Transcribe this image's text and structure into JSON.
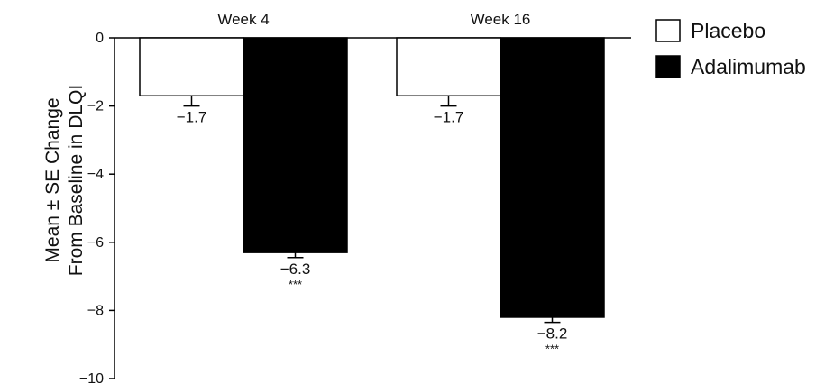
{
  "chart_data": {
    "type": "bar",
    "categories": [
      "Week 4",
      "Week 16"
    ],
    "series": [
      {
        "name": "Placebo",
        "color": "#ffffff",
        "values": [
          -1.7,
          -1.7
        ],
        "se": [
          0.3,
          0.3
        ],
        "labels": [
          "−1.7",
          "−1.7"
        ],
        "sig": [
          "",
          ""
        ]
      },
      {
        "name": "Adalimumab",
        "color": "#000000",
        "values": [
          -6.3,
          -8.2
        ],
        "se": [
          0.15,
          0.15
        ],
        "labels": [
          "−6.3",
          "−8.2"
        ],
        "sig": [
          "***",
          "***"
        ]
      }
    ],
    "ylabel_lines": [
      "Mean ± SE Change",
      "From Baseline in DLQI"
    ],
    "ylim": [
      -10,
      0
    ],
    "yticks": [
      0,
      -2,
      -4,
      -6,
      -8,
      -10
    ],
    "ytick_labels": [
      "0",
      "−2",
      "−4",
      "−6",
      "−8",
      "−10"
    ],
    "legend_position": "top-right",
    "grid": false
  }
}
